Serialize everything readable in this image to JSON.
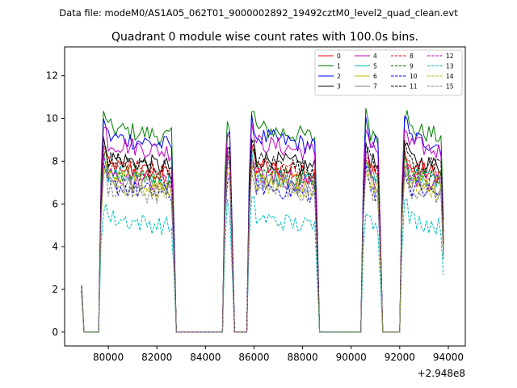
{
  "suptitle": "Data file: modeM0/AS1A05_062T01_9000002892_19492cztM0_level2_quad_clean.evt",
  "chart_data": {
    "type": "line",
    "title": "Quadrant 0 module wise count rates with 100.0s bins.",
    "xlabel": "",
    "ylabel": "",
    "offset_text": "+2.948e8",
    "x_offset": 294800000,
    "xlim": [
      78200,
      94700
    ],
    "ylim": [
      -0.65,
      13.35
    ],
    "xticks": [
      80000,
      82000,
      84000,
      86000,
      88000,
      90000,
      92000,
      94000
    ],
    "xtick_labels": [
      "80000",
      "82000",
      "84000",
      "86000",
      "88000",
      "90000",
      "92000",
      "94000"
    ],
    "yticks": [
      0,
      2,
      4,
      6,
      8,
      10,
      12
    ],
    "ytick_labels": [
      "0",
      "2",
      "4",
      "6",
      "8",
      "10",
      "12"
    ],
    "grid": false,
    "legend_position": "top-right",
    "bin_seconds": 100,
    "plateau_segments": [
      {
        "start": 79700,
        "end": 82700
      },
      {
        "start": 84800,
        "end": 85100
      },
      {
        "start": 85800,
        "end": 88600
      },
      {
        "start": 90500,
        "end": 91200
      },
      {
        "start": 92100,
        "end": 93800
      }
    ],
    "series": [
      {
        "name": "0",
        "level": 7.8,
        "color": "#ff0000",
        "dashed": false
      },
      {
        "name": "1",
        "level": 9.6,
        "color": "#008000",
        "dashed": false
      },
      {
        "name": "2",
        "level": 9.2,
        "color": "#0000ff",
        "dashed": false
      },
      {
        "name": "3",
        "level": 8.2,
        "color": "#000000",
        "dashed": false
      },
      {
        "name": "4",
        "level": 8.9,
        "color": "#bf00bf",
        "dashed": false
      },
      {
        "name": "5",
        "level": 7.5,
        "color": "#00bfbf",
        "dashed": false
      },
      {
        "name": "6",
        "level": 7.3,
        "color": "#bfbf00",
        "dashed": false
      },
      {
        "name": "7",
        "level": 7.2,
        "color": "#808080",
        "dashed": false
      },
      {
        "name": "8",
        "level": 7.9,
        "color": "#ff0000",
        "dashed": true
      },
      {
        "name": "9",
        "level": 7.6,
        "color": "#008000",
        "dashed": true
      },
      {
        "name": "10",
        "level": 6.9,
        "color": "#0000ff",
        "dashed": true
      },
      {
        "name": "11",
        "level": 8.1,
        "color": "#000000",
        "dashed": true
      },
      {
        "name": "12",
        "level": 7.4,
        "color": "#bf00bf",
        "dashed": true
      },
      {
        "name": "13",
        "level": 5.4,
        "color": "#00bfbf",
        "dashed": true
      },
      {
        "name": "14",
        "level": 7.0,
        "color": "#bfbf00",
        "dashed": true
      },
      {
        "name": "15",
        "level": 6.8,
        "color": "#808080",
        "dashed": true
      }
    ]
  }
}
